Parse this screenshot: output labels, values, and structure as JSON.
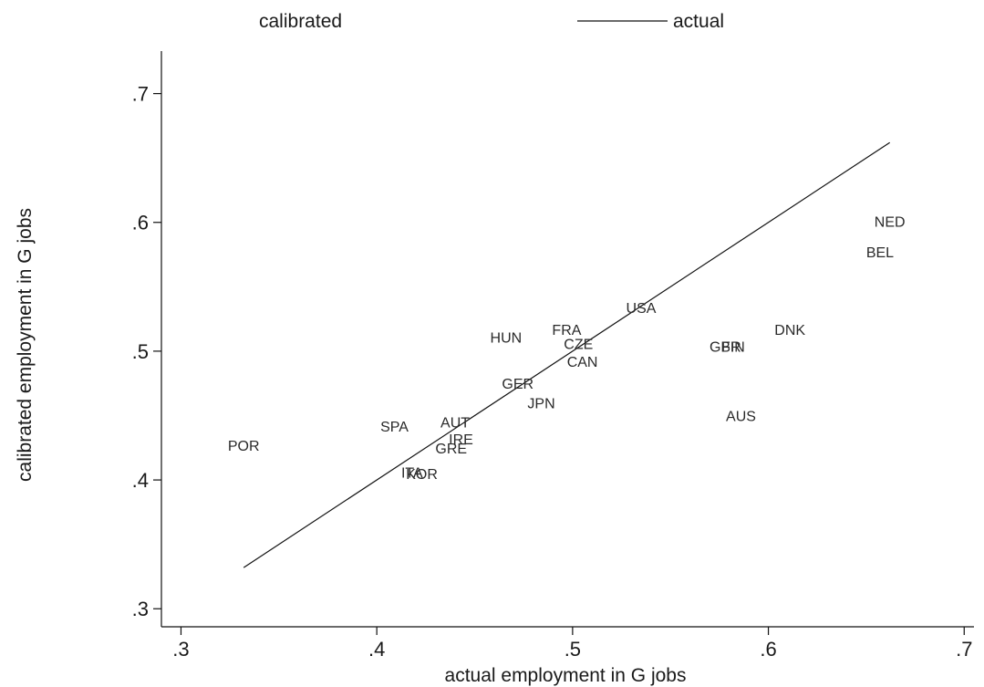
{
  "chart_data": {
    "type": "scatter",
    "xlabel": "actual employment in G jobs",
    "ylabel": "calibrated employment in G jobs",
    "xlim": [
      0.29,
      0.705
    ],
    "ylim": [
      0.286,
      0.733
    ],
    "x_ticks": [
      {
        "value": 0.3,
        "label": ".3"
      },
      {
        "value": 0.4,
        "label": ".4"
      },
      {
        "value": 0.5,
        "label": ".5"
      },
      {
        "value": 0.6,
        "label": ".6"
      },
      {
        "value": 0.7,
        "label": ".7"
      }
    ],
    "y_ticks": [
      {
        "value": 0.3,
        "label": ".3"
      },
      {
        "value": 0.4,
        "label": ".4"
      },
      {
        "value": 0.5,
        "label": ".5"
      },
      {
        "value": 0.6,
        "label": ".6"
      },
      {
        "value": 0.7,
        "label": ".7"
      }
    ],
    "grid": false,
    "legend": {
      "position": "top",
      "entries": [
        {
          "label": "calibrated",
          "marker": "none"
        },
        {
          "label": "actual",
          "marker": "line"
        }
      ]
    },
    "series": [
      {
        "name": "calibrated",
        "type": "labeled-scatter",
        "points": [
          {
            "label": "POR",
            "x": 0.332,
            "y": 0.427
          },
          {
            "label": "SPA",
            "x": 0.409,
            "y": 0.442
          },
          {
            "label": "AUT",
            "x": 0.44,
            "y": 0.445
          },
          {
            "label": "IRE",
            "x": 0.443,
            "y": 0.432
          },
          {
            "label": "GRE",
            "x": 0.438,
            "y": 0.425
          },
          {
            "label": "ITA",
            "x": 0.418,
            "y": 0.406
          },
          {
            "label": "KOR",
            "x": 0.423,
            "y": 0.405
          },
          {
            "label": "HUN",
            "x": 0.466,
            "y": 0.511
          },
          {
            "label": "GER",
            "x": 0.472,
            "y": 0.475
          },
          {
            "label": "JPN",
            "x": 0.484,
            "y": 0.46
          },
          {
            "label": "FRA",
            "x": 0.497,
            "y": 0.517
          },
          {
            "label": "CZE",
            "x": 0.503,
            "y": 0.506
          },
          {
            "label": "CAN",
            "x": 0.505,
            "y": 0.492
          },
          {
            "label": "USA",
            "x": 0.535,
            "y": 0.534
          },
          {
            "label": "GBR",
            "x": 0.578,
            "y": 0.504
          },
          {
            "label": "FIN",
            "x": 0.582,
            "y": 0.504
          },
          {
            "label": "AUS",
            "x": 0.586,
            "y": 0.45
          },
          {
            "label": "DNK",
            "x": 0.611,
            "y": 0.517
          },
          {
            "label": "BEL",
            "x": 0.657,
            "y": 0.577
          },
          {
            "label": "NED",
            "x": 0.662,
            "y": 0.601
          }
        ]
      },
      {
        "name": "actual",
        "type": "line",
        "points": [
          {
            "x": 0.332,
            "y": 0.332
          },
          {
            "x": 0.662,
            "y": 0.662
          }
        ]
      }
    ]
  }
}
